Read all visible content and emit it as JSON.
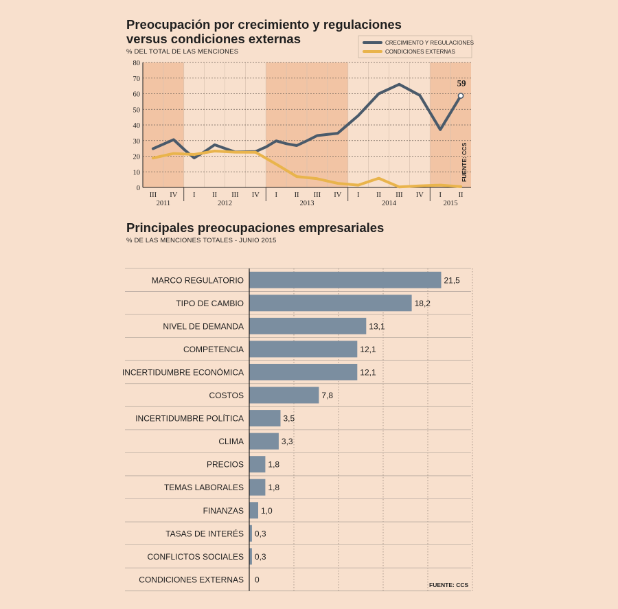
{
  "colors": {
    "background": "#f8e0cd",
    "plot_band_light": "#f8e0cd",
    "plot_band_dark": "#f2c4a4",
    "series_regulaciones": "#4a5a6a",
    "series_externas": "#e9b44c",
    "bar": "#7b8ea0"
  },
  "chart_data": [
    {
      "type": "line",
      "title_lines": [
        "Preocupación por crecimiento y regulaciones",
        "versus condiciones externas"
      ],
      "subtitle": "% DEL TOTAL DE LAS MENCIONES",
      "ylim": [
        0,
        80
      ],
      "yticks": [
        "0",
        "10",
        "20",
        "30",
        "40",
        "50",
        "60",
        "70",
        "80"
      ],
      "quarters": [
        "III",
        "IV",
        "I",
        "II",
        "III",
        "IV",
        "I",
        "II",
        "III",
        "IV",
        "I",
        "II",
        "III",
        "IV",
        "I",
        "II"
      ],
      "years": [
        {
          "label": "2011",
          "start": 0,
          "end": 1
        },
        {
          "label": "2012",
          "start": 2,
          "end": 5
        },
        {
          "label": "2013",
          "start": 6,
          "end": 9
        },
        {
          "label": "2014",
          "start": 10,
          "end": 13
        },
        {
          "label": "2015",
          "start": 14,
          "end": 15
        }
      ],
      "shaded_bands": [
        0,
        1,
        6,
        7,
        8,
        9,
        14,
        15
      ],
      "series": [
        {
          "name": "CRECIMIENTO Y REGULACIONES",
          "color": "#4a5a6a",
          "x": [
            0.0,
            1.0,
            1.55,
            2.0,
            2.5,
            3.0,
            4.0,
            5.0,
            5.5,
            6.0,
            6.5,
            7.0,
            7.5,
            8.0,
            9.0,
            10.0,
            11.0,
            12.0,
            13.0,
            14.0,
            15.0
          ],
          "values": [
            24.8,
            30.6,
            23.9,
            18.9,
            22.8,
            27.3,
            22.7,
            23.0,
            25.9,
            29.8,
            28.0,
            26.8,
            29.9,
            33.2,
            34.7,
            46.0,
            60.0,
            66.0,
            59.0,
            37.0,
            58.7
          ]
        },
        {
          "name": "CONDICIONES EXTERNAS",
          "color": "#e9b44c",
          "x": [
            0.0,
            1.0,
            2.0,
            3.0,
            4.0,
            5.0,
            6.0,
            7.0,
            8.0,
            9.0,
            10.0,
            11.0,
            12.0,
            13.0,
            14.0,
            15.0
          ],
          "values": [
            18.8,
            21.7,
            21.1,
            23.3,
            22.6,
            22.5,
            14.9,
            7.0,
            5.6,
            2.6,
            1.5,
            5.9,
            0.3,
            1.0,
            1.5,
            0.5
          ]
        }
      ],
      "annotation": {
        "label": "59",
        "x": 15,
        "value": 58.7
      },
      "legend": [
        "CRECIMIENTO Y REGULACIONES",
        "CONDICIONES EXTERNAS"
      ],
      "source": "FUENTE: CCS"
    },
    {
      "type": "bar",
      "orientation": "horizontal",
      "title": "Principales preocupaciones empresariales",
      "subtitle": "% DE LAS MENCIONES TOTALES - JUNIO 2015",
      "xlim": [
        0,
        25
      ],
      "categories": [
        "MARCO REGULATORIO",
        "TIPO DE CAMBIO",
        "NIVEL DE DEMANDA",
        "COMPETENCIA",
        "INCERTIDUMBRE ECONÓMICA",
        "COSTOS",
        "INCERTIDUMBRE POLÍTICA",
        "CLIMA",
        "PRECIOS",
        "TEMAS LABORALES",
        "FINANZAS",
        "TASAS DE INTERÉS",
        "CONFLICTOS SOCIALES",
        "CONDICIONES EXTERNAS"
      ],
      "values": [
        21.5,
        18.2,
        13.1,
        12.1,
        12.1,
        7.8,
        3.5,
        3.3,
        1.8,
        1.8,
        1.0,
        0.3,
        0.3,
        0
      ],
      "value_labels": [
        "21,5",
        "18,2",
        "13,1",
        "12,1",
        "12,1",
        "7,8",
        "3,5",
        "3,3",
        "1,8",
        "1,8",
        "1,0",
        "0,3",
        "0,3",
        "0"
      ],
      "source": "FUENTE: CCS"
    }
  ]
}
